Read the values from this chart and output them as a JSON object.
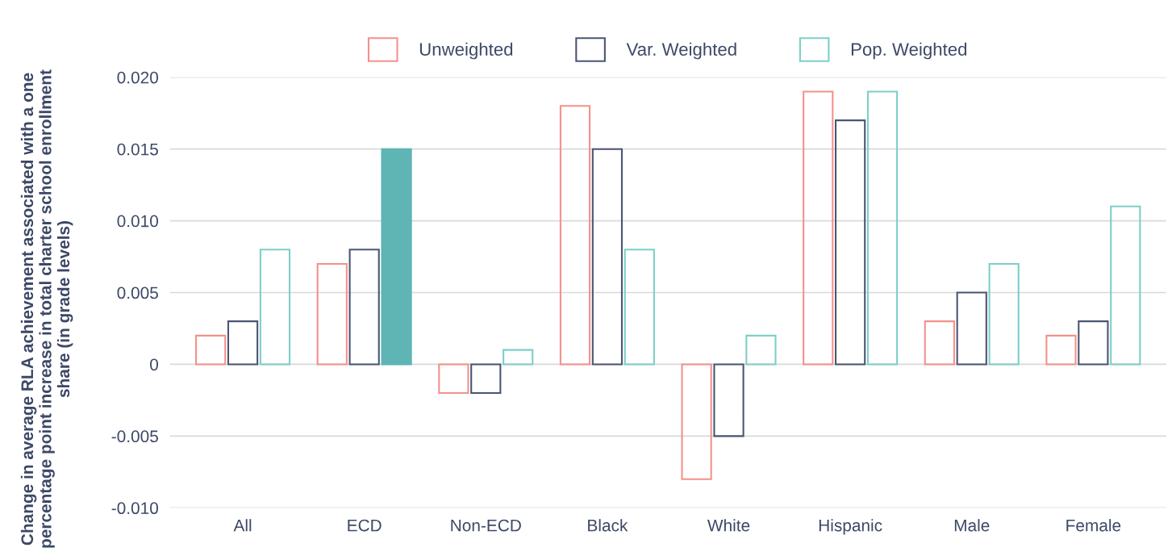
{
  "chart_data": {
    "type": "bar",
    "ylabel": "Change in average RLA achievement associated with a one percentage point increase in total charter school enrollment share (in grade levels)",
    "categories": [
      "All",
      "ECD",
      "Non-ECD",
      "Black",
      "White",
      "Hispanic",
      "Male",
      "Female"
    ],
    "series": [
      {
        "name": "Unweighted",
        "color": "#f4918a",
        "values": [
          0.002,
          0.007,
          -0.002,
          0.018,
          -0.008,
          0.019,
          0.003,
          0.002
        ]
      },
      {
        "name": "Var. Weighted",
        "color": "#4a5573",
        "values": [
          0.003,
          0.008,
          -0.002,
          0.015,
          -0.005,
          0.017,
          0.005,
          0.003
        ]
      },
      {
        "name": "Pop. Weighted",
        "color": "#7ccfc8",
        "colors": [
          "#7ccfc8",
          "#5fb4b4",
          "#7ccfc8",
          "#7ccfc8",
          "#7ccfc8",
          "#7ccfc8",
          "#7ccfc8",
          "#7ccfc8"
        ],
        "values": [
          0.008,
          0.015,
          0.001,
          0.008,
          0.002,
          0.019,
          0.007,
          0.011
        ]
      }
    ],
    "ylim": [
      -0.01,
      0.02
    ],
    "yticks": [
      {
        "value": -0.01,
        "label": "-0.010"
      },
      {
        "value": -0.005,
        "label": "-0.005"
      },
      0,
      {
        "value": 0.005,
        "label": "0.005"
      },
      {
        "value": 0.01,
        "label": "0.010"
      },
      {
        "value": 0.015,
        "label": "0.015"
      },
      {
        "value": 0.02,
        "label": "0.020"
      }
    ],
    "grid": "y",
    "legend": "top"
  }
}
